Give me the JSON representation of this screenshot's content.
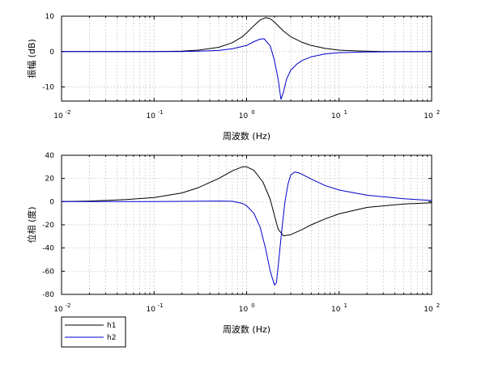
{
  "chart_data": [
    {
      "type": "line",
      "xlabel": "周波数 (Hz)",
      "ylabel": "振幅 (dB)",
      "xscale": "log",
      "xlim": [
        0.01,
        100
      ],
      "ylim": [
        -14,
        10
      ],
      "grid": true,
      "x_ticks": [
        {
          "base": "10",
          "exp": "-2"
        },
        {
          "base": "10",
          "exp": "-1"
        },
        {
          "base": "10",
          "exp": "0"
        },
        {
          "base": "10",
          "exp": "1"
        },
        {
          "base": "10",
          "exp": "2"
        }
      ],
      "y_ticks": [
        "10",
        "0",
        "-10"
      ],
      "series": [
        {
          "name": "h1",
          "color": "#000000",
          "x": [
            0.01,
            0.1,
            0.2,
            0.3,
            0.5,
            0.7,
            0.9,
            1.0,
            1.2,
            1.4,
            1.6,
            1.8,
            2.0,
            2.5,
            3.0,
            4.0,
            5.0,
            7.0,
            10.0,
            15.0,
            20.0,
            30.0,
            100.0
          ],
          "y": [
            0.0,
            0.0,
            0.1,
            0.4,
            1.2,
            2.5,
            4.2,
            5.3,
            7.3,
            8.9,
            9.6,
            9.3,
            8.3,
            5.8,
            4.2,
            2.6,
            1.7,
            0.9,
            0.4,
            0.2,
            0.1,
            0.0,
            0.0
          ]
        },
        {
          "name": "h2",
          "color": "#0000cc",
          "x": [
            0.01,
            0.1,
            0.2,
            0.3,
            0.5,
            0.7,
            1.0,
            1.2,
            1.4,
            1.55,
            1.8,
            2.0,
            2.2,
            2.35,
            2.5,
            2.7,
            3.0,
            3.5,
            4.0,
            5.0,
            7.0,
            10.0,
            20.0,
            100.0
          ],
          "y": [
            0.0,
            0.0,
            0.0,
            0.1,
            0.3,
            0.8,
            1.7,
            2.8,
            3.5,
            3.6,
            1.6,
            -2.5,
            -8.0,
            -13.5,
            -11.5,
            -7.8,
            -5.3,
            -3.5,
            -2.5,
            -1.5,
            -0.7,
            -0.3,
            -0.1,
            0.0
          ]
        }
      ]
    },
    {
      "type": "line",
      "xlabel": "周波数 (Hz)",
      "ylabel": "位相 (度)",
      "xscale": "log",
      "xlim": [
        0.01,
        100
      ],
      "ylim": [
        -80,
        40
      ],
      "grid": true,
      "x_ticks": [
        {
          "base": "10",
          "exp": "-2"
        },
        {
          "base": "10",
          "exp": "-1"
        },
        {
          "base": "10",
          "exp": "0"
        },
        {
          "base": "10",
          "exp": "1"
        },
        {
          "base": "10",
          "exp": "2"
        }
      ],
      "y_ticks": [
        "40",
        "20",
        "0",
        "-20",
        "-40",
        "-60",
        "-80"
      ],
      "legend": {
        "position": "bottom-left",
        "entries": [
          "h1",
          "h2"
        ]
      },
      "series": [
        {
          "name": "h1",
          "color": "#000000",
          "x": [
            0.01,
            0.02,
            0.05,
            0.1,
            0.2,
            0.3,
            0.5,
            0.7,
            0.9,
            1.0,
            1.2,
            1.5,
            1.8,
            2.0,
            2.2,
            2.5,
            3.0,
            4.0,
            5.0,
            7.0,
            10.0,
            20.0,
            50.0,
            100.0
          ],
          "y": [
            0.0,
            0.5,
            1.8,
            3.5,
            7.5,
            12.0,
            20.0,
            26.5,
            30.0,
            30.0,
            27.0,
            17.0,
            2.0,
            -12.0,
            -24.0,
            -29.5,
            -28.5,
            -24.0,
            -20.0,
            -15.0,
            -10.5,
            -5.0,
            -2.0,
            -1.0
          ]
        },
        {
          "name": "h2",
          "color": "#0000cc",
          "x": [
            0.01,
            0.1,
            0.5,
            0.7,
            0.9,
            1.0,
            1.2,
            1.4,
            1.6,
            1.8,
            2.0,
            2.1,
            2.2,
            2.4,
            2.6,
            2.8,
            3.0,
            3.3,
            3.6,
            4.0,
            5.0,
            7.0,
            10.0,
            20.0,
            50.0,
            100.0
          ],
          "y": [
            0.0,
            0.0,
            0.5,
            0.3,
            -1.5,
            -3.5,
            -10.0,
            -22.0,
            -40.0,
            -60.0,
            -72.0,
            -70.0,
            -55.0,
            -25.0,
            0.0,
            15.0,
            23.0,
            25.5,
            25.0,
            23.5,
            19.5,
            14.0,
            10.0,
            5.5,
            2.5,
            1.0
          ]
        }
      ]
    }
  ]
}
